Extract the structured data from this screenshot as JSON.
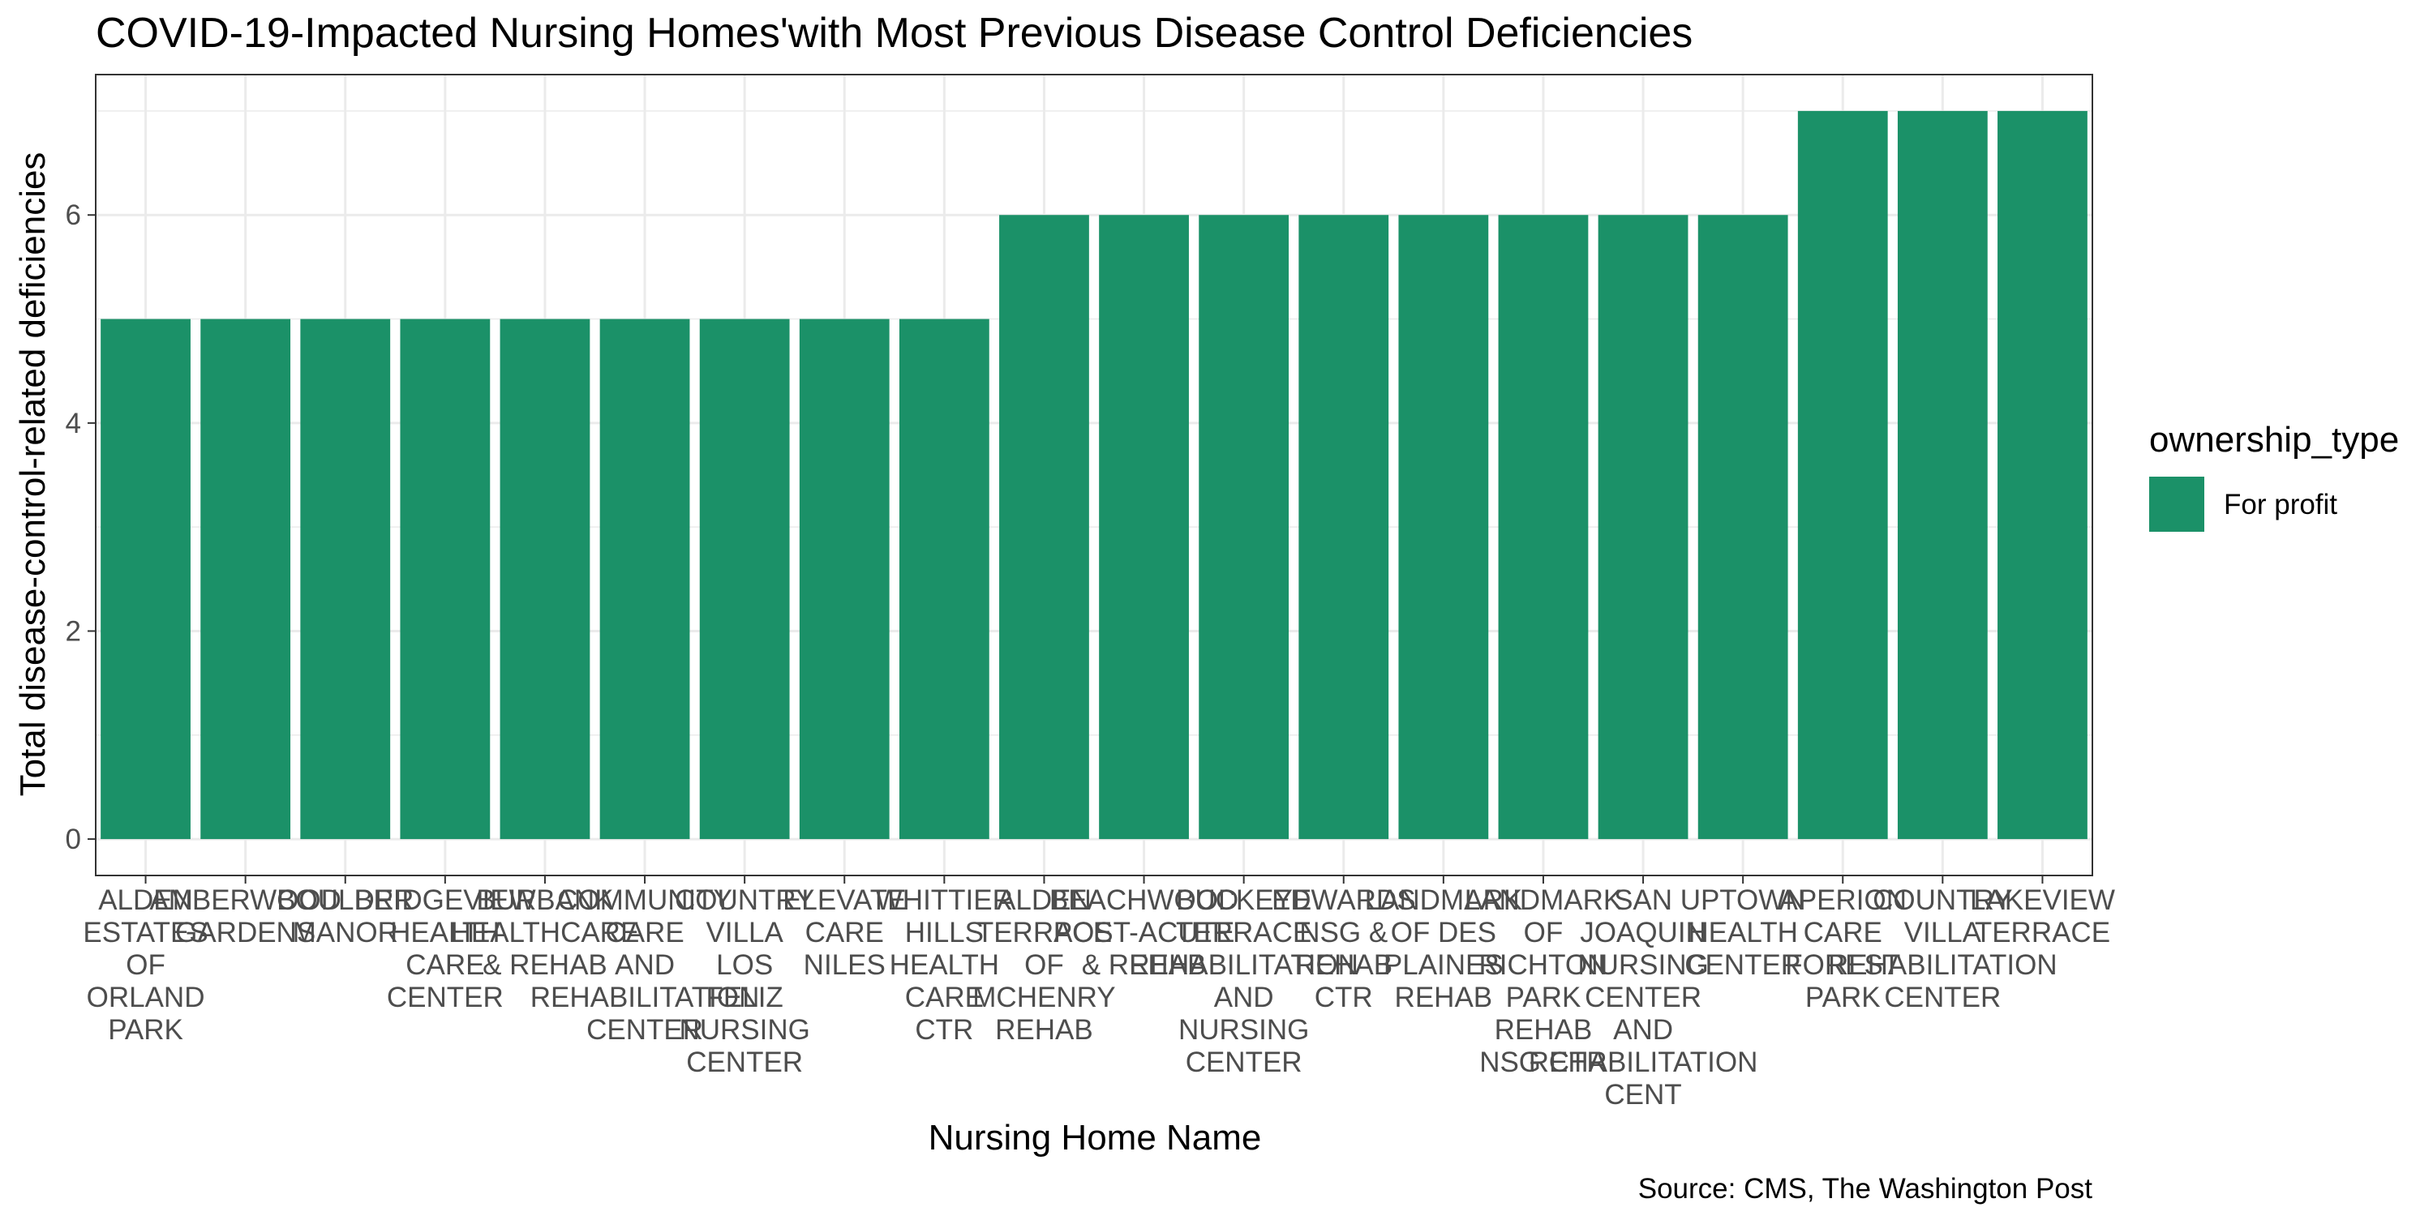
{
  "chart_data": {
    "type": "bar",
    "title": "COVID-19-Impacted Nursing Homes'with Most Previous Disease Control Deficiencies",
    "xlabel": "Nursing Home Name",
    "ylabel": "Total disease-control-related deficiencies",
    "caption": "Source: CMS, The Washington Post",
    "ylim": [
      -0.35,
      7.35
    ],
    "yticks": [
      0,
      2,
      4,
      6
    ],
    "grid": true,
    "legend": {
      "title": "ownership_type",
      "placement": "right",
      "entries": [
        {
          "label": "For profit",
          "color": "#1b9168"
        }
      ]
    },
    "categories": [
      [
        "ALDEN",
        "ESTATES",
        "OF",
        "ORLAND",
        "PARK"
      ],
      [
        "AMBERWOOD",
        "GARDENS"
      ],
      [
        "BOULDER",
        "MANOR"
      ],
      [
        "BRIDGEVIEW",
        "HEALTH",
        "CARE",
        "CENTER"
      ],
      [
        "BURBANK",
        "HEALTHCARE",
        "& REHAB"
      ],
      [
        "COMMUNITY",
        "CARE",
        "AND",
        "REHABILITATION",
        "CENTER"
      ],
      [
        "COUNTRY",
        "VILLA",
        "LOS",
        "FELIZ",
        "NURSING",
        "CENTER"
      ],
      [
        "ELEVATE",
        "CARE",
        "NILES"
      ],
      [
        "WHITTIER",
        "HILLS",
        "HEALTH",
        "CARE",
        "CTR"
      ],
      [
        "ALDEN",
        "TERRACE",
        "OF",
        "MCHENRY",
        "REHAB"
      ],
      [
        "BEACHWOOD",
        "POST-ACUTE",
        "& REHAB"
      ],
      [
        "BUCKEYE",
        "TERRACE",
        "REHABILITATION",
        "AND",
        "NURSING",
        "CENTER"
      ],
      [
        "EDWARDS",
        "NSG &",
        "REHAB",
        "CTR"
      ],
      [
        "LANDMARK",
        "OF DES",
        "PLAINES",
        "REHAB"
      ],
      [
        "LANDMARK",
        "OF",
        "RICHTON",
        "PARK",
        "REHAB",
        "NSG CTR"
      ],
      [
        "SAN",
        "JOAQUIN",
        "NURSING",
        "CENTER",
        "AND",
        "REHABILITATION",
        "CENT"
      ],
      [
        "UPTOWN",
        "HEALTH",
        "CENTER"
      ],
      [
        "APERION",
        "CARE",
        "FOREST",
        "PARK"
      ],
      [
        "COUNTRY",
        "VILLA",
        "REHABILITATION",
        "CENTER"
      ],
      [
        "LAKEVIEW",
        "TERRACE"
      ]
    ],
    "values": [
      5,
      5,
      5,
      5,
      5,
      5,
      5,
      5,
      5,
      6,
      6,
      6,
      6,
      6,
      6,
      6,
      6,
      7,
      7,
      7
    ],
    "bar_color": "#1b9168",
    "panel_background": "#ffffff",
    "grid_color": "#ebebeb",
    "axis_text_color": "#4d4d4d"
  }
}
